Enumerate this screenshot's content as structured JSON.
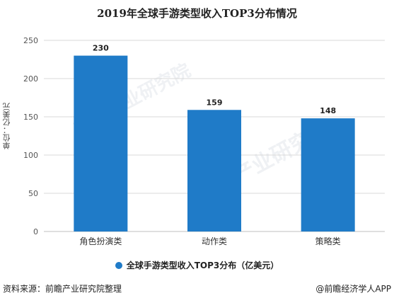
{
  "chart_data": {
    "type": "bar",
    "title": "2019年全球手游类型收入TOP3分布情况",
    "ylabel": "单位：亿美元",
    "categories": [
      "角色扮演类",
      "动作类",
      "策略类"
    ],
    "series": [
      {
        "name": "全球手游类型收入TOP3分布（亿美元）",
        "values": [
          230,
          159,
          148
        ],
        "color": "#1f7bc8"
      }
    ],
    "data_labels": [
      "230",
      "159",
      "148"
    ],
    "ylim": [
      0,
      250
    ],
    "yticks": [
      0,
      50,
      100,
      150,
      200,
      250
    ],
    "grid": true,
    "legend_position": "bottom"
  },
  "footer": {
    "source": "资料来源：前瞻产业研究院整理",
    "credit": "@前瞻经济学人APP"
  },
  "watermark": {
    "text": "前瞻产业研究院"
  }
}
